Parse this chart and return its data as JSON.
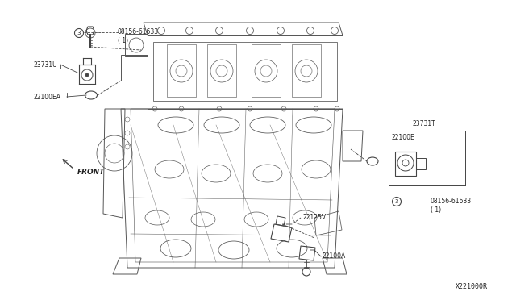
{
  "bg_color": "#ffffff",
  "fig_width": 6.4,
  "fig_height": 3.72,
  "dpi": 100,
  "labels": {
    "bolt_top_left": "08156-61633\n( 1)",
    "bolt_top_left_num": "3",
    "label_23731U": "23731U",
    "label_22100EA": "22100EA",
    "label_front": "FRONT",
    "label_23731T": "23731T",
    "label_22100E": "22100E",
    "label_22125V": "22125V",
    "label_22100A": "22100A",
    "bolt_right": "08156-61633\n( 1)",
    "bolt_right_num": "3",
    "diagram_num": "X221000R"
  },
  "lc": "#444444",
  "tc": "#222222"
}
